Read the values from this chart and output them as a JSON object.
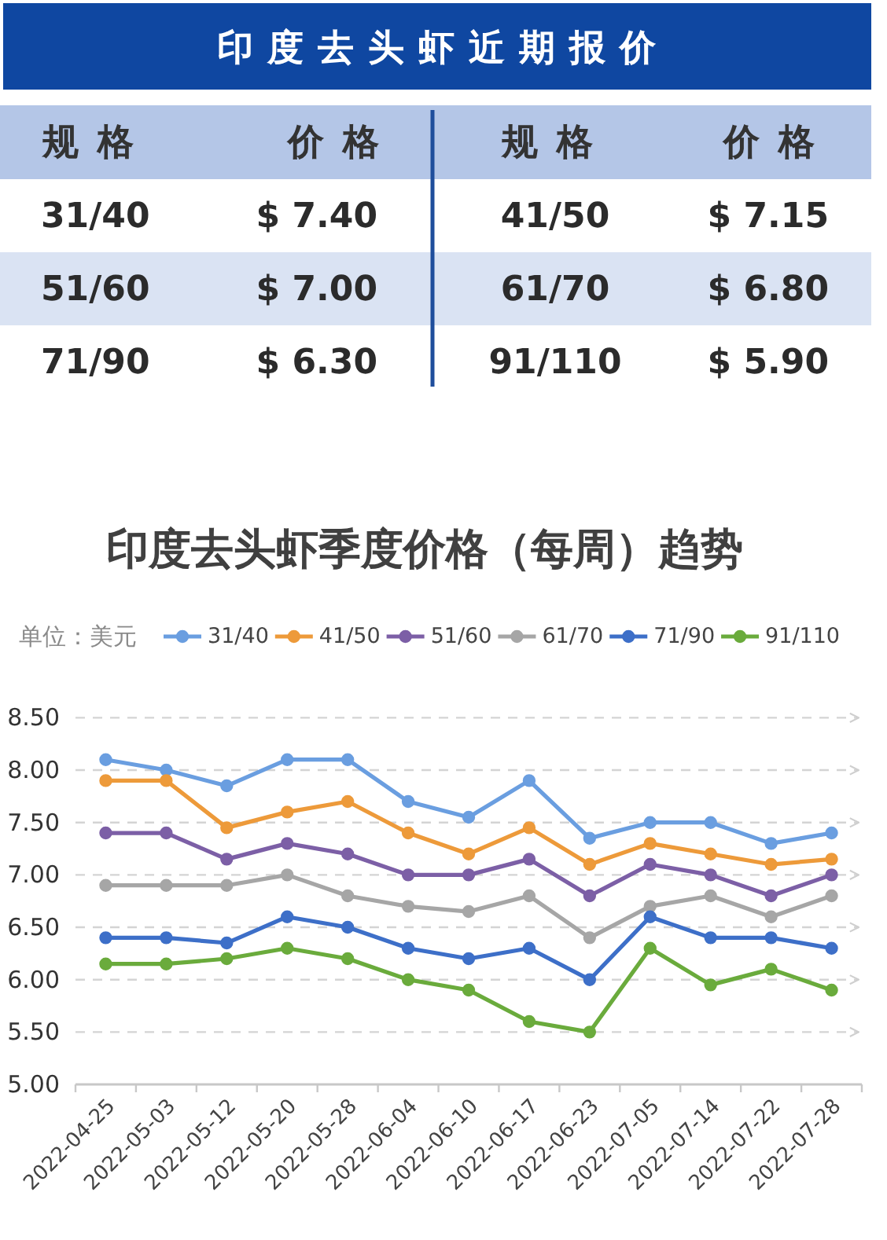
{
  "chart_data": [
    {
      "type": "other",
      "title": "印度去头虾近期报价",
      "annotations": [
        "规格",
        "价格",
        "规格",
        "价格",
        "31/40",
        "$ 7.40",
        "41/50",
        "$ 7.15",
        "51/60",
        "$ 7.00",
        "61/70",
        "$ 6.80",
        "71/90",
        "$ 6.30",
        "91/110",
        "$ 5.90"
      ]
    },
    {
      "type": "line",
      "title": "印度去头虾季度价格（每周）趋势",
      "ylabel": "单位：美元",
      "categories": [
        "2022-04-25",
        "2022-05-03",
        "2022-05-12",
        "2022-05-20",
        "2022-05-28",
        "2022-06-04",
        "2022-06-10",
        "2022-06-17",
        "2022-06-23",
        "2022-07-05",
        "2022-07-14",
        "2022-07-22",
        "2022-07-28"
      ],
      "series": [
        {
          "name": "31/40",
          "color": "#6a9ee0",
          "values": [
            8.1,
            8.0,
            7.85,
            8.1,
            8.1,
            7.7,
            7.55,
            7.9,
            7.35,
            7.5,
            7.5,
            7.3,
            7.4
          ]
        },
        {
          "name": "41/50",
          "color": "#ed9a3a",
          "values": [
            7.9,
            7.9,
            7.45,
            7.6,
            7.7,
            7.4,
            7.2,
            7.45,
            7.1,
            7.3,
            7.2,
            7.1,
            7.15
          ]
        },
        {
          "name": "51/60",
          "color": "#7c5fa6",
          "values": [
            7.4,
            7.4,
            7.15,
            7.3,
            7.2,
            7.0,
            7.0,
            7.15,
            6.8,
            7.1,
            7.0,
            6.8,
            7.0
          ]
        },
        {
          "name": "61/70",
          "color": "#a6a6a6",
          "values": [
            6.9,
            6.9,
            6.9,
            7.0,
            6.8,
            6.7,
            6.65,
            6.8,
            6.4,
            6.7,
            6.8,
            6.6,
            6.8
          ]
        },
        {
          "name": "71/90",
          "color": "#3d6fc8",
          "values": [
            6.4,
            6.4,
            6.35,
            6.6,
            6.5,
            6.3,
            6.2,
            6.3,
            6.0,
            6.6,
            6.4,
            6.4,
            6.3
          ]
        },
        {
          "name": "91/110",
          "color": "#6aab3c",
          "values": [
            6.15,
            6.15,
            6.2,
            6.3,
            6.2,
            6.0,
            5.9,
            5.6,
            5.5,
            6.3,
            5.95,
            6.1,
            5.9
          ]
        }
      ],
      "ylim": [
        5,
        8.5
      ],
      "yticks": [
        {
          "value": 5,
          "label": "5.00"
        },
        {
          "value": 5.5,
          "label": "5.50"
        },
        {
          "value": 6,
          "label": "6.00"
        },
        {
          "value": 6.5,
          "label": "6.50"
        },
        {
          "value": 7,
          "label": "7.00"
        },
        {
          "value": 7.5,
          "label": "7.50"
        },
        {
          "value": 8,
          "label": "8.00"
        },
        {
          "value": 8.5,
          "label": "8.50"
        }
      ],
      "grid": "y",
      "legend": "top",
      "marker": "circle",
      "line_style": "solid"
    }
  ]
}
